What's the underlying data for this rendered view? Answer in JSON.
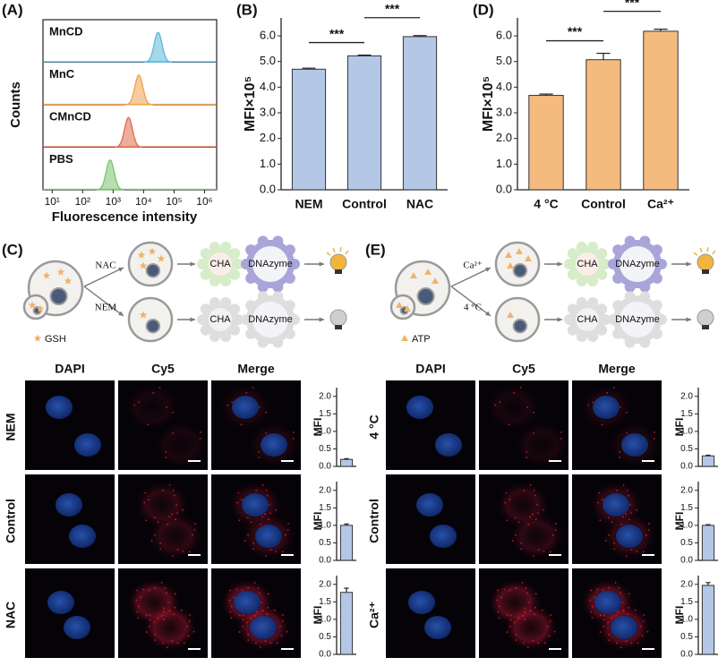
{
  "panel_labels": [
    "(A)",
    "(B)",
    "(C)",
    "(D)",
    "(E)"
  ],
  "chart_data": [
    {
      "type": "ridgeline",
      "ylabel": "Counts",
      "xlabel": "Fluorescence intensity",
      "xscale": "log",
      "xlim": [
        5,
        2500000
      ],
      "xticks": [
        {
          "value": 10,
          "label": "10¹"
        },
        {
          "value": 100,
          "label": "10²"
        },
        {
          "value": 1000,
          "label": "10³"
        },
        {
          "value": 10000,
          "label": "10⁴"
        },
        {
          "value": 100000,
          "label": "10⁵"
        },
        {
          "value": 1000000,
          "label": "10⁶"
        }
      ],
      "series": [
        {
          "name": "MnCD",
          "color": "#5bb8da",
          "peak": 30000
        },
        {
          "name": "MnC",
          "color": "#eea24a",
          "peak": 7000
        },
        {
          "name": "CMnCD",
          "color": "#de6a4c",
          "peak": 3200
        },
        {
          "name": "PBS",
          "color": "#78c46c",
          "peak": 800
        }
      ]
    },
    {
      "type": "bar",
      "ylabel": "MFI×10⁵",
      "categories": [
        "NEM",
        "Control",
        "NAC"
      ],
      "values": [
        4.7,
        5.22,
        5.97
      ],
      "errors": [
        0.04,
        0.03,
        0.04
      ],
      "color": "#b4c7e7",
      "ylim": [
        0,
        6.7
      ],
      "yticks": [
        {
          "value": 0,
          "label": "0.0"
        },
        {
          "value": 1,
          "label": "1.0"
        },
        {
          "value": 2,
          "label": "2.0"
        },
        {
          "value": 3,
          "label": "3.0"
        },
        {
          "value": 4,
          "label": "4.0"
        },
        {
          "value": 5,
          "label": "5.0"
        },
        {
          "value": 6,
          "label": "6.0"
        }
      ],
      "annotations": [
        "***",
        "***"
      ]
    },
    {
      "type": "bar",
      "ylabel": "MFI×10⁵",
      "categories": [
        "4 °C",
        "Control",
        "Ca²⁺"
      ],
      "values": [
        3.68,
        5.07,
        6.18
      ],
      "errors": [
        0.05,
        0.25,
        0.08
      ],
      "color": "#f5bb7e",
      "ylim": [
        0,
        6.7
      ],
      "yticks": [
        {
          "value": 0,
          "label": "0.0"
        },
        {
          "value": 1,
          "label": "1.0"
        },
        {
          "value": 2,
          "label": "2.0"
        },
        {
          "value": 3,
          "label": "3.0"
        },
        {
          "value": 4,
          "label": "4.0"
        },
        {
          "value": 5,
          "label": "5.0"
        },
        {
          "value": 6,
          "label": "6.0"
        }
      ],
      "annotations": [
        "***",
        "***"
      ]
    },
    {
      "type": "bar",
      "ylabel": "MFI",
      "categories": [
        "NEM"
      ],
      "values": [
        0.2
      ],
      "errors": [
        0.02
      ],
      "color": "#b4c7e7",
      "ylim": [
        0,
        2.25
      ],
      "yticks": [
        {
          "value": 0,
          "label": "0.0"
        },
        {
          "value": 0.5,
          "label": "0.5"
        },
        {
          "value": 1,
          "label": "1.0"
        },
        {
          "value": 1.5,
          "label": "1.5"
        },
        {
          "value": 2,
          "label": "2.0"
        }
      ]
    },
    {
      "type": "bar",
      "ylabel": "MFI",
      "categories": [
        "Control"
      ],
      "values": [
        1.0
      ],
      "errors": [
        0.04
      ],
      "color": "#b4c7e7",
      "ylim": [
        0,
        2.25
      ],
      "yticks": [
        {
          "value": 0,
          "label": "0.0"
        },
        {
          "value": 0.5,
          "label": "0.5"
        },
        {
          "value": 1,
          "label": "1.0"
        },
        {
          "value": 1.5,
          "label": "1.5"
        },
        {
          "value": 2,
          "label": "2.0"
        }
      ]
    },
    {
      "type": "bar",
      "ylabel": "MFI",
      "categories": [
        "NAC"
      ],
      "values": [
        1.77
      ],
      "errors": [
        0.12
      ],
      "color": "#b4c7e7",
      "ylim": [
        0,
        2.25
      ],
      "yticks": [
        {
          "value": 0,
          "label": "0.0"
        },
        {
          "value": 0.5,
          "label": "0.5"
        },
        {
          "value": 1,
          "label": "1.0"
        },
        {
          "value": 1.5,
          "label": "1.5"
        },
        {
          "value": 2,
          "label": "2.0"
        }
      ]
    },
    {
      "type": "bar",
      "ylabel": "MFI",
      "categories": [
        "4 °C"
      ],
      "values": [
        0.3
      ],
      "errors": [
        0.02
      ],
      "color": "#b4c7e7",
      "ylim": [
        0,
        2.25
      ],
      "yticks": [
        {
          "value": 0,
          "label": "0.0"
        },
        {
          "value": 0.5,
          "label": "0.5"
        },
        {
          "value": 1,
          "label": "1.0"
        },
        {
          "value": 1.5,
          "label": "1.5"
        },
        {
          "value": 2,
          "label": "2.0"
        }
      ]
    },
    {
      "type": "bar",
      "ylabel": "MFI",
      "categories": [
        "Control"
      ],
      "values": [
        1.0
      ],
      "errors": [
        0.02
      ],
      "color": "#b4c7e7",
      "ylim": [
        0,
        2.25
      ],
      "yticks": [
        {
          "value": 0,
          "label": "0.0"
        },
        {
          "value": 0.5,
          "label": "0.5"
        },
        {
          "value": 1,
          "label": "1.0"
        },
        {
          "value": 1.5,
          "label": "1.5"
        },
        {
          "value": 2,
          "label": "2.0"
        }
      ]
    },
    {
      "type": "bar",
      "ylabel": "MFI",
      "categories": [
        "Ca²⁺"
      ],
      "values": [
        1.97
      ],
      "errors": [
        0.08
      ],
      "color": "#b4c7e7",
      "ylim": [
        0,
        2.25
      ],
      "yticks": [
        {
          "value": 0,
          "label": "0.0"
        },
        {
          "value": 0.5,
          "label": "0.5"
        },
        {
          "value": 1,
          "label": "1.0"
        },
        {
          "value": 1.5,
          "label": "1.5"
        },
        {
          "value": 2,
          "label": "2.0"
        }
      ]
    }
  ],
  "schemes": [
    {
      "inputs": [
        "NAC",
        "NEM"
      ],
      "molecule": "GSH",
      "modules": [
        "CHA",
        "DNAzyme",
        "CHA",
        "DNAzyme"
      ]
    },
    {
      "inputs": [
        "Ca²⁺",
        "4 °C"
      ],
      "molecule": "ATP",
      "modules": [
        "CHA",
        "DNAzyme",
        "CHA",
        "DNAzyme"
      ]
    }
  ],
  "microscopy": [
    {
      "columns": [
        "DAPI",
        "Cy5",
        "Merge"
      ]
    },
    {
      "columns": [
        "DAPI",
        "Cy5",
        "Merge"
      ]
    }
  ]
}
